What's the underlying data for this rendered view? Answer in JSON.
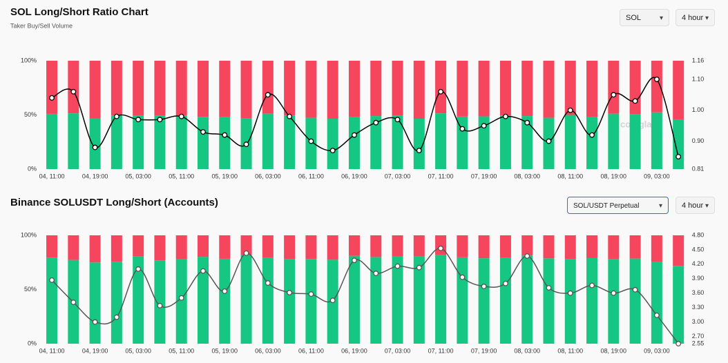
{
  "chart_data": [
    {
      "type": "bar",
      "title": "SOL Long/Short Ratio Chart",
      "subtitle": "Taker Buy/Sell Volume",
      "controls": [
        "SOL",
        "4 hour"
      ],
      "watermark": "coinglass",
      "categories": [
        "04, 11:00",
        null,
        "04, 19:00",
        null,
        "05, 03:00",
        null,
        "05, 11:00",
        null,
        "05, 19:00",
        null,
        "06, 03:00",
        null,
        "06, 11:00",
        null,
        "06, 19:00",
        null,
        "07, 03:00",
        null,
        "07, 11:00",
        null,
        "07, 19:00",
        null,
        "08, 03:00",
        null,
        "08, 11:00",
        null,
        "08, 19:00",
        null,
        "09, 03:00",
        null
      ],
      "series": [
        {
          "color": "#16c784",
          "values": [
            51,
            51.5,
            46.8,
            49.5,
            49.2,
            49.2,
            49.5,
            48.2,
            47.9,
            47.1,
            51.2,
            49.5,
            47.4,
            46.5,
            47.9,
            49,
            49.2,
            46.5,
            51.5,
            48.5,
            48.7,
            49.5,
            49,
            47.4,
            50,
            47.9,
            51.2,
            50.7,
            52.4,
            45.9
          ]
        },
        {
          "color": "#f6465d",
          "values": [
            49,
            48.5,
            53.2,
            50.5,
            50.8,
            50.8,
            50.5,
            51.8,
            52.1,
            52.9,
            48.8,
            50.5,
            52.6,
            53.5,
            52.1,
            51,
            50.8,
            53.5,
            48.5,
            51.5,
            51.3,
            50.5,
            51,
            52.6,
            50,
            52.1,
            48.8,
            49.3,
            47.6,
            54.1
          ]
        },
        {
          "color": "#000000",
          "axis": "y2",
          "values": [
            1.04,
            1.06,
            0.88,
            0.98,
            0.97,
            0.97,
            0.98,
            0.93,
            0.92,
            0.89,
            1.05,
            0.98,
            0.9,
            0.87,
            0.92,
            0.96,
            0.97,
            0.87,
            1.06,
            0.94,
            0.95,
            0.98,
            0.96,
            0.9,
            1.0,
            0.92,
            1.05,
            1.03,
            1.1,
            0.85
          ]
        }
      ],
      "ylim": [
        0,
        100
      ],
      "yticks": [
        {
          "value": 0,
          "label": "0%"
        },
        {
          "value": 50,
          "label": "50%"
        },
        {
          "value": 100,
          "label": "100%"
        }
      ],
      "y2lim": [
        0.81,
        1.16
      ],
      "y2ticks": [
        0.81,
        {
          "value": 0.9,
          "label": "0.90"
        },
        {
          "value": 1,
          "label": "1.00"
        },
        {
          "value": 1.1,
          "label": "1.10"
        },
        1.16
      ]
    },
    {
      "type": "bar",
      "title": "Binance SOLUSDT Long/Short (Accounts)",
      "controls": [
        "SOL/USDT Perpetual",
        "4 hour"
      ],
      "categories": [
        "04, 11:00",
        null,
        "04, 19:00",
        null,
        "05, 03:00",
        null,
        "05, 11:00",
        null,
        "05, 19:00",
        null,
        "06, 03:00",
        null,
        "06, 11:00",
        null,
        "06, 19:00",
        null,
        "07, 03:00",
        null,
        "07, 11:00",
        null,
        "07, 19:00",
        null,
        "08, 03:00",
        null,
        "08, 11:00",
        null,
        "08, 19:00",
        null,
        "09, 03:00",
        null
      ],
      "series": [
        {
          "color": "#16c784",
          "values": [
            79.5,
            77.3,
            75,
            75.6,
            80.4,
            77,
            77.8,
            80.2,
            78.4,
            81.6,
            79.2,
            78.3,
            78.2,
            77.5,
            81.1,
            80,
            80.6,
            80.5,
            81.9,
            79.7,
            78.9,
            79.2,
            81.4,
            78.8,
            78.3,
            79,
            78.3,
            78.6,
            75.8,
            71.8
          ]
        },
        {
          "color": "#f6465d",
          "values": [
            20.5,
            22.7,
            25,
            24.4,
            19.6,
            23,
            22.2,
            19.8,
            21.6,
            18.4,
            20.8,
            21.7,
            21.8,
            22.5,
            18.9,
            20,
            19.4,
            19.5,
            18.1,
            20.3,
            21.1,
            20.8,
            18.6,
            21.2,
            21.7,
            21,
            21.7,
            21.4,
            24.2,
            28.2
          ]
        },
        {
          "color": "#555555",
          "axis": "y2",
          "values": [
            3.87,
            3.41,
            3.0,
            3.1,
            4.1,
            3.34,
            3.5,
            4.06,
            3.64,
            4.43,
            3.81,
            3.61,
            3.58,
            3.45,
            4.28,
            4.01,
            4.16,
            4.13,
            4.53,
            3.93,
            3.74,
            3.8,
            4.37,
            3.71,
            3.6,
            3.76,
            3.6,
            3.67,
            3.14,
            2.55
          ]
        }
      ],
      "ylim": [
        0,
        100
      ],
      "yticks": [
        {
          "value": 0,
          "label": "0%"
        },
        {
          "value": 50,
          "label": "50%"
        },
        {
          "value": 100,
          "label": "100%"
        }
      ],
      "y2lim": [
        2.55,
        4.8
      ],
      "y2ticks": [
        2.55,
        {
          "value": 2.7,
          "label": "2.70"
        },
        {
          "value": 3,
          "label": "3.00"
        },
        {
          "value": 3.3,
          "label": "3.30"
        },
        {
          "value": 3.6,
          "label": "3.60"
        },
        {
          "value": 3.9,
          "label": "3.90"
        },
        {
          "value": 4.2,
          "label": "4.20"
        },
        {
          "value": 4.5,
          "label": "4.50"
        },
        {
          "value": 4.8,
          "label": "4.80"
        }
      ]
    }
  ]
}
